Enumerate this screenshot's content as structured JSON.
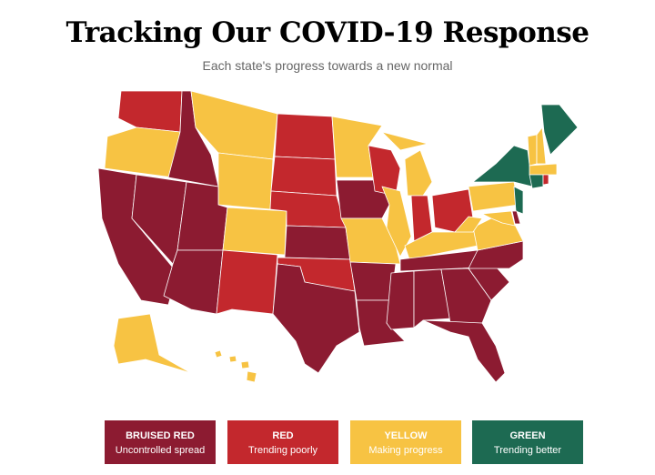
{
  "title": "Tracking Our COVID-19 Response",
  "subtitle": "Each state's progress towards a new normal",
  "legend": [
    {
      "label": "BRUISED RED",
      "description": "Uncontrolled spread",
      "color": "#8c1b31"
    },
    {
      "label": "RED",
      "description": "Trending poorly",
      "color": "#c3282d"
    },
    {
      "label": "YELLOW",
      "description": "Making progress",
      "color": "#f7c343"
    },
    {
      "label": "GREEN",
      "description": "Trending better",
      "color": "#1d6a52"
    }
  ]
}
